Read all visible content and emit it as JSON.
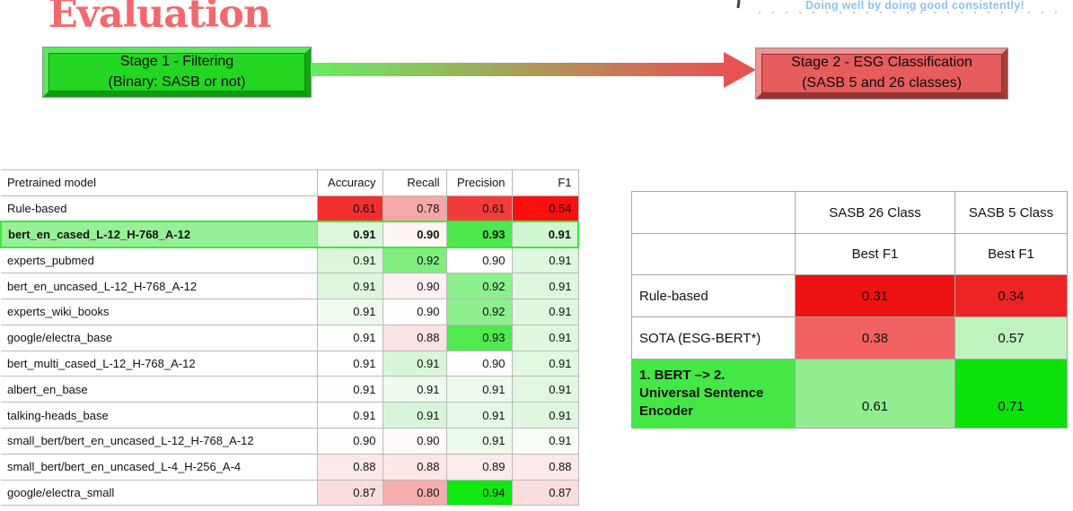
{
  "title": "Evaluation",
  "tagline": "Doing well by doing good consistently!",
  "colors": {
    "title": "#f1696d",
    "tagline": "#8cc3ef",
    "stage1_fill": "#22d622",
    "stage2_fill": "#e75c5c",
    "arrow_gradient_start": "#68ec60",
    "arrow_gradient_end": "#e85252",
    "highlight_row_border": "#3ce73c"
  },
  "flow": {
    "stage1_line1": "Stage 1 - Filtering",
    "stage1_line2": "(Binary: SASB or not)",
    "stage2_line1": "Stage 2 - ESG Classification",
    "stage2_line2": "(SASB 5 and 26 classes)"
  },
  "chart_data": [
    {
      "type": "table",
      "name": "stage1-pretrained-model-metrics",
      "columns": [
        "Pretrained model",
        "Accuracy",
        "Recall",
        "Precision",
        "F1"
      ],
      "rows": [
        {
          "model": "Rule-based",
          "values": [
            "0.61",
            "0.78",
            "0.61",
            "0.54"
          ],
          "cell_colors": [
            "#f22f2f",
            "#f6a7a7",
            "#f23b3b",
            "#fc0f0f"
          ],
          "name_bg": "#ffffff",
          "bold": false,
          "highlight": false
        },
        {
          "model": "bert_en_cased_L-12_H-768_A-12",
          "values": [
            "0.91",
            "0.90",
            "0.93",
            "0.91"
          ],
          "cell_colors": [
            "#ddf6dd",
            "#fef6f6",
            "#4de84d",
            "#d2f5d2"
          ],
          "name_bg": "#97f097",
          "bold": true,
          "highlight": true
        },
        {
          "model": "experts_pubmed",
          "values": [
            "0.91",
            "0.92",
            "0.90",
            "0.91"
          ],
          "cell_colors": [
            "#dcf6dc",
            "#7fee7f",
            "#ffffff",
            "#dff7df"
          ],
          "name_bg": "#ffffff",
          "bold": false,
          "highlight": false
        },
        {
          "model": "bert_en_uncased_L-12_H-768_A-12",
          "values": [
            "0.91",
            "0.90",
            "0.92",
            "0.91"
          ],
          "cell_colors": [
            "#ddf6dd",
            "#fdf1f1",
            "#8bef8b",
            "#dff7df"
          ],
          "name_bg": "#ffffff",
          "bold": false,
          "highlight": false
        },
        {
          "model": "experts_wiki_books",
          "values": [
            "0.91",
            "0.90",
            "0.92",
            "0.91"
          ],
          "cell_colors": [
            "#f0fbf0",
            "#fefefe",
            "#8def8d",
            "#dff7df"
          ],
          "name_bg": "#ffffff",
          "bold": false,
          "highlight": false
        },
        {
          "model": "google/electra_base",
          "values": [
            "0.91",
            "0.88",
            "0.93",
            "0.91"
          ],
          "cell_colors": [
            "#fcfefc",
            "#fbe3e3",
            "#50e950",
            "#dff7df"
          ],
          "name_bg": "#ffffff",
          "bold": false,
          "highlight": false
        },
        {
          "model": "bert_multi_cased_L-12_H-768_A-12",
          "values": [
            "0.91",
            "0.91",
            "0.90",
            "0.91"
          ],
          "cell_colors": [
            "#fefffe",
            "#d7f5d7",
            "#fefcfc",
            "#e0f7e0"
          ],
          "name_bg": "#ffffff",
          "bold": false,
          "highlight": false
        },
        {
          "model": "albert_en_base",
          "values": [
            "0.91",
            "0.91",
            "0.91",
            "0.91"
          ],
          "cell_colors": [
            "#fdfefd",
            "#eefaee",
            "#edfaed",
            "#e1f7e1"
          ],
          "name_bg": "#ffffff",
          "bold": false,
          "highlight": false
        },
        {
          "model": "talking-heads_base",
          "values": [
            "0.91",
            "0.91",
            "0.91",
            "0.91"
          ],
          "cell_colors": [
            "#ffffff",
            "#d9f5d9",
            "#e6f8e6",
            "#dff7df"
          ],
          "name_bg": "#ffffff",
          "bold": false,
          "highlight": false
        },
        {
          "model": "small_bert/bert_en_uncased_L-12_H-768_A-12",
          "values": [
            "0.90",
            "0.90",
            "0.91",
            "0.91"
          ],
          "cell_colors": [
            "#fffcfc",
            "#fefafa",
            "#ecfaec",
            "#f8fdf8"
          ],
          "name_bg": "#ffffff",
          "bold": false,
          "highlight": false
        },
        {
          "model": "small_bert/bert_en_uncased_L-4_H-256_A-4",
          "values": [
            "0.88",
            "0.88",
            "0.89",
            "0.88"
          ],
          "cell_colors": [
            "#fce8e8",
            "#fce6e6",
            "#fcebeb",
            "#fce9e9"
          ],
          "name_bg": "#ffffff",
          "bold": false,
          "highlight": false
        },
        {
          "model": "google/electra_small",
          "values": [
            "0.87",
            "0.80",
            "0.94",
            "0.87"
          ],
          "cell_colors": [
            "#fadcdc",
            "#f5adad",
            "#11e711",
            "#fadddd"
          ],
          "name_bg": "#ffffff",
          "bold": false,
          "highlight": false
        }
      ]
    },
    {
      "type": "table",
      "name": "stage2-esg-classification-results",
      "columns": [
        "",
        "SASB 26 Class",
        "SASB 5 Class"
      ],
      "subheader": [
        "",
        "Best F1",
        "Best F1"
      ],
      "rows": [
        {
          "model": "Rule-based",
          "values": [
            "0.31",
            "0.34"
          ],
          "cell_colors": [
            "#ee1212",
            "#ee2424"
          ],
          "name_bg": "#ffffff",
          "bold": false
        },
        {
          "model": "SOTA (ESG-BERT*)",
          "values": [
            "0.38",
            "0.57"
          ],
          "cell_colors": [
            "#f26161",
            "#bef3be"
          ],
          "name_bg": "#ffffff",
          "bold": false
        },
        {
          "model": "1. BERT –> 2. Universal Sentence Encoder",
          "values": [
            "0.61",
            "0.71"
          ],
          "cell_colors": [
            "#90ee90",
            "#0ce10c"
          ],
          "name_bg": "#44e744",
          "bold": true
        }
      ]
    }
  ]
}
